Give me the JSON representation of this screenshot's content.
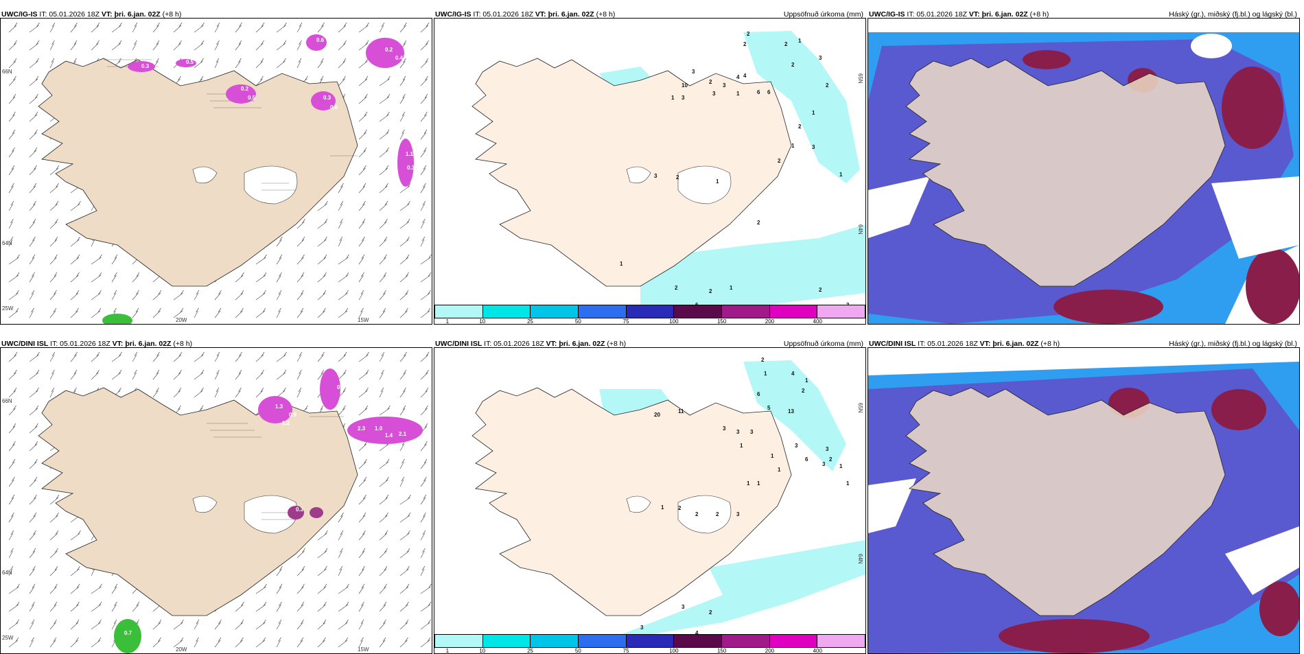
{
  "rows": [
    {
      "model": "UWC/IG-IS",
      "panels": [
        {
          "kind": "wind",
          "it": "IT: 05.01.2026 18Z",
          "vt_label": "VT:",
          "vt": "þri. 6.jan. 02Z",
          "offset": "(+8 h)",
          "right": "",
          "lon_labels": [
            "20W",
            "15W"
          ],
          "lat_labels": [
            "66N",
            "64N",
            "25W"
          ],
          "precip_labels": [
            "0.3",
            "0.5",
            "0.2",
            "0.5",
            "0.3",
            "0.6",
            "0.2",
            "0.4",
            "1.1",
            "0.3",
            "0.6"
          ]
        },
        {
          "kind": "precip",
          "it": "IT: 05.01.2026 18Z",
          "vt_label": "VT:",
          "vt": "þri. 6.jan. 02Z",
          "offset": "(+8 h)",
          "right": "Uppsöfnuð úrkoma (mm)",
          "lat_labels": [
            "65N",
            "64N"
          ],
          "values": [
            "2",
            "2",
            "2",
            "1",
            "2",
            "3",
            "2",
            "6",
            "10",
            "2",
            "3",
            "4",
            "3",
            "3",
            "1",
            "1",
            "3",
            "6",
            "4",
            "2",
            "1",
            "1",
            "2",
            "3",
            "2",
            "1",
            "3",
            "1",
            "1",
            "2",
            "2",
            "1",
            "6",
            "2",
            "2",
            "3"
          ]
        },
        {
          "kind": "cloud",
          "it": "IT: 05.01.2026 18Z",
          "vt_label": "VT:",
          "vt": "þri. 6.jan. 02Z",
          "offset": "(+8 h)",
          "right": "Háský (gr.), miðský (fj.bl.) og lágský (bl.)"
        }
      ]
    },
    {
      "model": "UWC/DINI ISL",
      "panels": [
        {
          "kind": "wind",
          "it": "IT: 05.01.2026 18Z",
          "vt_label": "VT:",
          "vt": "þri. 6.jan. 02Z",
          "offset": "(+8 h)",
          "right": "",
          "lon_labels": [
            "20W",
            "15W"
          ],
          "lat_labels": [
            "66N",
            "64N",
            "25W"
          ],
          "precip_labels": [
            "1.3",
            "1.3",
            "0.8",
            "0.9",
            "1.2",
            "2.3",
            "1.0",
            "1.4",
            "2.1",
            "3.8",
            "0.3",
            "0.7"
          ]
        },
        {
          "kind": "precip",
          "it": "IT: 05.01.2026 18Z",
          "vt_label": "VT:",
          "vt": "þri. 6.jan. 02Z",
          "offset": "(+8 h)",
          "right": "Uppsöfnuð úrkoma (mm)",
          "lat_labels": [
            "65N",
            "64N"
          ],
          "values": [
            "2",
            "1",
            "4",
            "1",
            "2",
            "5",
            "6",
            "20",
            "11",
            "3",
            "3",
            "3",
            "1",
            "1",
            "1",
            "1",
            "13",
            "3",
            "6",
            "3",
            "2",
            "3",
            "1",
            "1",
            "2",
            "2",
            "2",
            "3",
            "1",
            "3",
            "2",
            "4",
            "3",
            "3",
            "1"
          ]
        },
        {
          "kind": "cloud",
          "it": "IT: 05.01.2026 18Z",
          "vt_label": "VT:",
          "vt": "þri. 6.jan. 02Z",
          "offset": "(+8 h)",
          "right": "Háský (gr.), miðský (fj.bl.) og lágský (bl.)"
        }
      ]
    }
  ],
  "colorbar": {
    "colors": [
      "#b3f7f7",
      "#00e5e5",
      "#00c4e8",
      "#2d6df0",
      "#2a2ab8",
      "#5a0a4a",
      "#a01a8a",
      "#e000c0",
      "#f0a8f0"
    ],
    "ticks": [
      "1",
      "10",
      "25",
      "50",
      "75",
      "100",
      "150",
      "200",
      "400"
    ]
  },
  "palette": {
    "land": "#efdcc6",
    "precip_land": "#fdf0e3",
    "magenta": "#d64fd6",
    "cyan": "#b3f7f7",
    "cloud_high": "#e0e0e0",
    "cloud_mid": "#5a5ad0",
    "cloud_low": "#8a1e4a",
    "cloud_sky": "#2f9df0"
  }
}
